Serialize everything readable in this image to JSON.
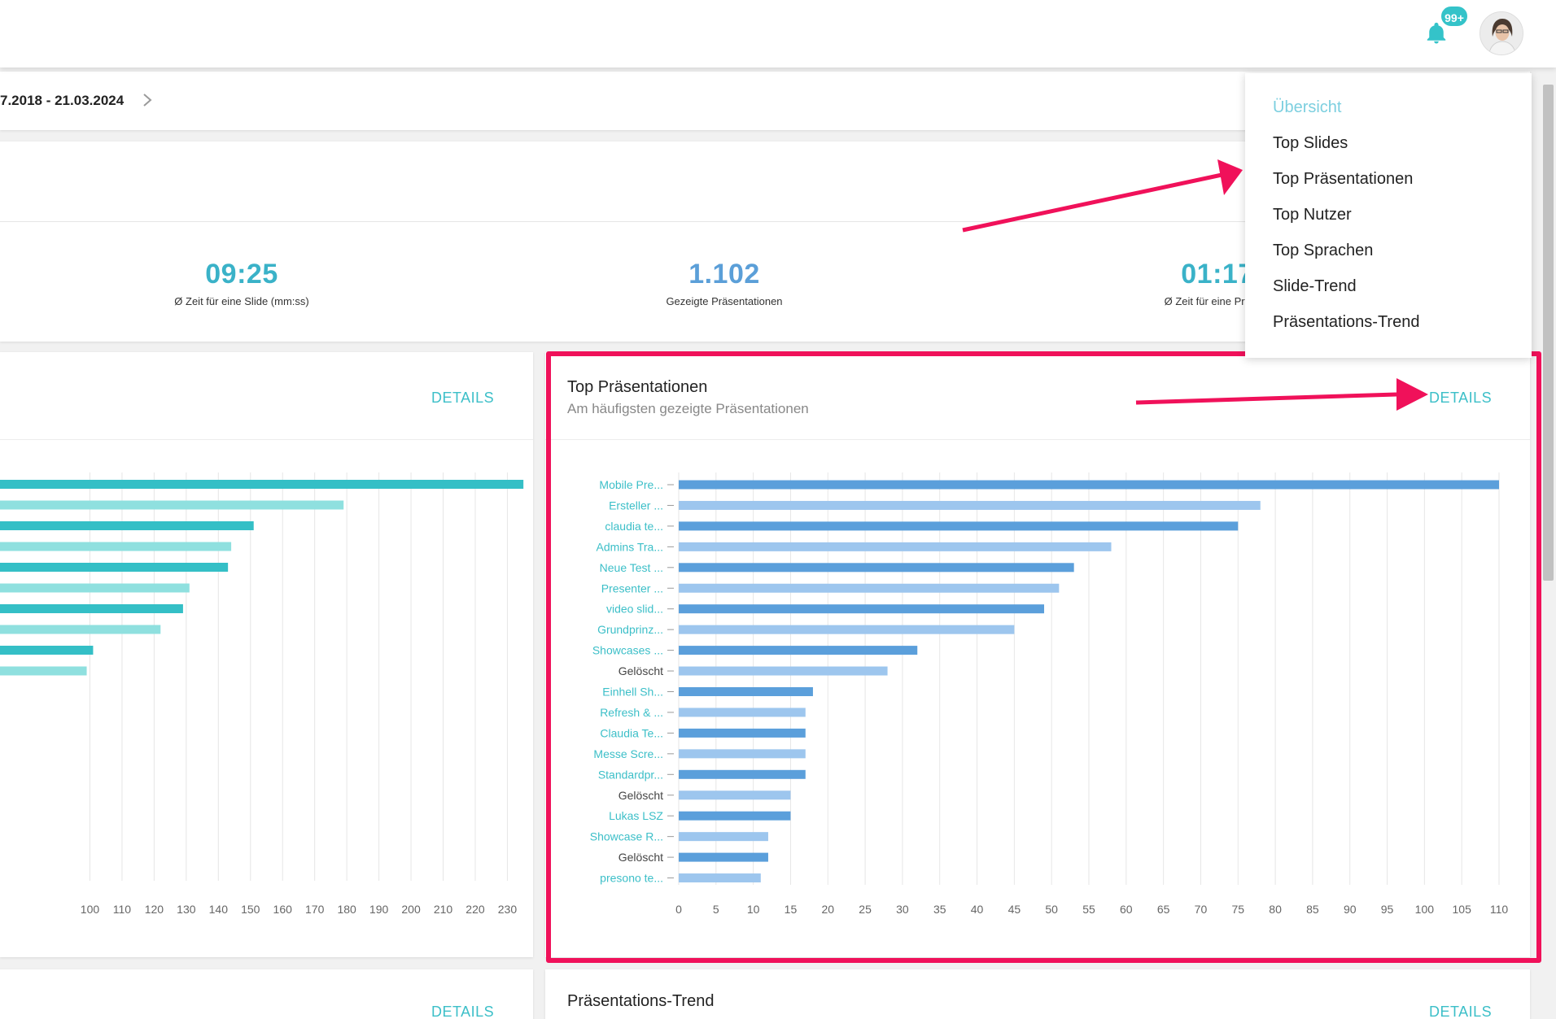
{
  "header": {
    "notification_badge": "99+",
    "colors": {
      "accent": "#34c3c9",
      "highlight": "#f0115a"
    }
  },
  "datebar": {
    "range": "7.2018 - 21.03.2024"
  },
  "stats": [
    {
      "value": "09:25",
      "label": "Ø Zeit für eine Slide (mm:ss)"
    },
    {
      "value": "1.102",
      "label": "Gezeigte Präsentationen"
    },
    {
      "value": "01:17",
      "label": "Ø Zeit für eine Präsent"
    }
  ],
  "menu": {
    "items": [
      {
        "label": "Übersicht",
        "active": true
      },
      {
        "label": "Top Slides"
      },
      {
        "label": "Top Präsentationen"
      },
      {
        "label": "Top Nutzer"
      },
      {
        "label": "Top Sprachen"
      },
      {
        "label": "Slide-Trend"
      },
      {
        "label": "Präsentations-Trend"
      }
    ]
  },
  "cards": {
    "left": {
      "details_label": "DETAILS"
    },
    "right": {
      "title": "Top Präsentationen",
      "subtitle": "Am häufigsten gezeigte Präsentationen",
      "details_label": "DETAILS"
    },
    "bottom_left": {
      "details_label": "DETAILS"
    },
    "bottom_right": {
      "title": "Präsentations-Trend",
      "details_label": "DETAILS"
    }
  },
  "chart_data": [
    {
      "type": "bar",
      "orientation": "horizontal",
      "title": "",
      "x_ticks": [
        100,
        110,
        120,
        130,
        140,
        150,
        160,
        170,
        180,
        190,
        200,
        210,
        220,
        230
      ],
      "xlim": [
        72,
        238
      ],
      "values": [
        235,
        179,
        151,
        144,
        143,
        131,
        129,
        122,
        101,
        99
      ],
      "colors": [
        "#34bfc6",
        "#8fe0df"
      ]
    },
    {
      "type": "bar",
      "orientation": "horizontal",
      "title": "Top Präsentationen",
      "xlim": [
        0,
        110
      ],
      "x_ticks": [
        0,
        5,
        10,
        15,
        20,
        25,
        30,
        35,
        40,
        45,
        50,
        55,
        60,
        65,
        70,
        75,
        80,
        85,
        90,
        95,
        100,
        105,
        110
      ],
      "categories": [
        "Mobile Pre...",
        "Ersteller ...",
        "claudia te...",
        "Admins Tra...",
        "Neue Test ...",
        "Presenter ...",
        "video slid...",
        "Grundprinz...",
        "Showcases ...",
        "Gelöscht",
        "Einhell Sh...",
        "Refresh & ...",
        "Claudia Te...",
        "Messe Scre...",
        "Standardpr...",
        "Gelöscht",
        "Lukas LSZ",
        "Showcase R...",
        "Gelöscht",
        "presono te..."
      ],
      "values": [
        110,
        78,
        75,
        58,
        53,
        51,
        49,
        45,
        32,
        28,
        18,
        17,
        17,
        17,
        17,
        15,
        15,
        12,
        12,
        11
      ],
      "colors": [
        "#5b9fdb",
        "#9dc6ee"
      ],
      "label_colors": {
        "link": "#3cbfc8",
        "deleted": "#444444"
      }
    }
  ]
}
